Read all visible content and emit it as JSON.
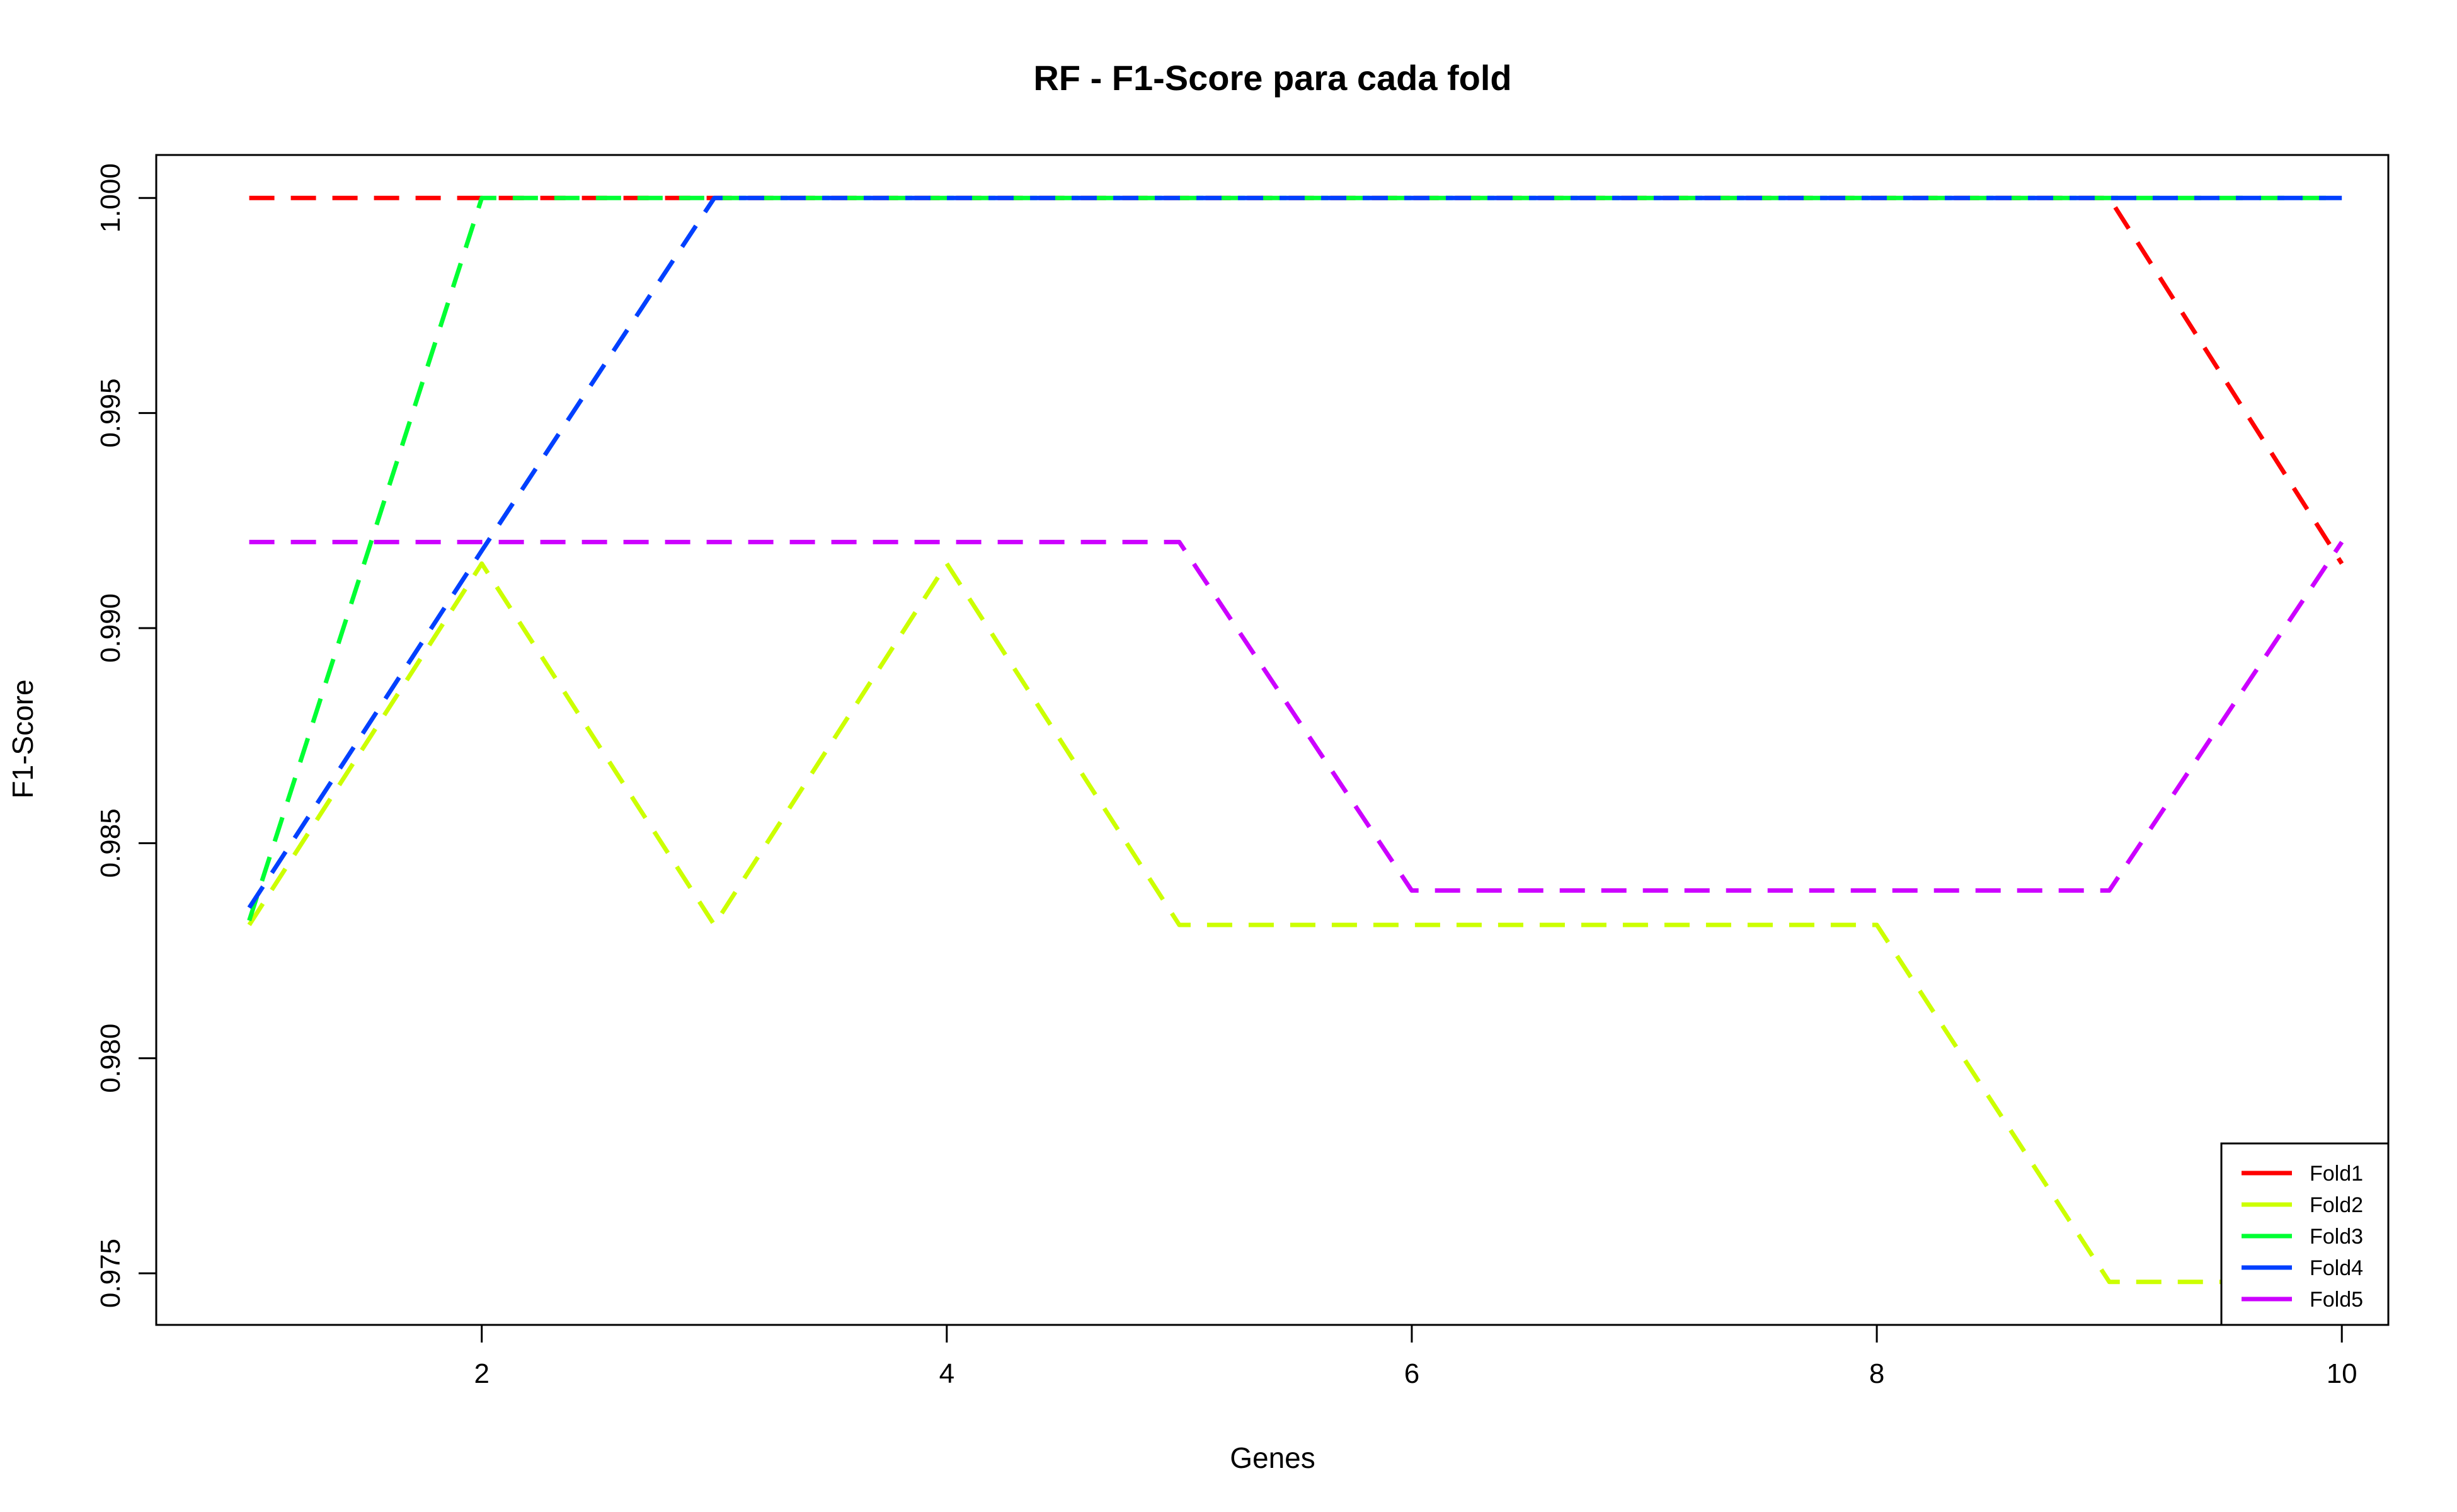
{
  "chart_data": {
    "type": "line",
    "title": "RF - F1-Score para cada fold",
    "xlabel": "Genes",
    "ylabel": "F1-Score",
    "x": [
      1,
      2,
      3,
      4,
      5,
      6,
      7,
      8,
      9,
      10
    ],
    "xlim": [
      0.6,
      10.2
    ],
    "ylim": [
      0.9738,
      1.001
    ],
    "xticks": [
      2,
      4,
      6,
      8,
      10
    ],
    "xtick_labels": [
      "2",
      "4",
      "6",
      "8",
      "10"
    ],
    "yticks": [
      0.975,
      0.98,
      0.985,
      0.99,
      0.995,
      1.0
    ],
    "ytick_labels": [
      "0.975",
      "0.980",
      "0.985",
      "0.990",
      "0.995",
      "1.000"
    ],
    "grid": false,
    "legend_position": "bottom-right",
    "line_style": "dashed",
    "series": [
      {
        "name": "Fold1",
        "color": "#FF0000",
        "values": [
          1.0,
          1.0,
          1.0,
          1.0,
          1.0,
          1.0,
          1.0,
          1.0,
          1.0,
          0.9915
        ]
      },
      {
        "name": "Fold2",
        "color": "#CCFF00",
        "values": [
          0.9831,
          0.9915,
          0.9831,
          0.9915,
          0.9831,
          0.9831,
          0.9831,
          0.9831,
          0.9748,
          0.9748
        ]
      },
      {
        "name": "Fold3",
        "color": "#00FF33",
        "values": [
          0.9832,
          1.0,
          1.0,
          1.0,
          1.0,
          1.0,
          1.0,
          1.0,
          1.0,
          1.0
        ]
      },
      {
        "name": "Fold4",
        "color": "#0040FF",
        "values": [
          0.9835,
          0.9918,
          1.0,
          1.0,
          1.0,
          1.0,
          1.0,
          1.0,
          1.0,
          1.0
        ]
      },
      {
        "name": "Fold5",
        "color": "#CC00FF",
        "values": [
          0.992,
          0.992,
          0.992,
          0.992,
          0.992,
          0.9839,
          0.9839,
          0.9839,
          0.9839,
          0.992
        ]
      }
    ]
  }
}
